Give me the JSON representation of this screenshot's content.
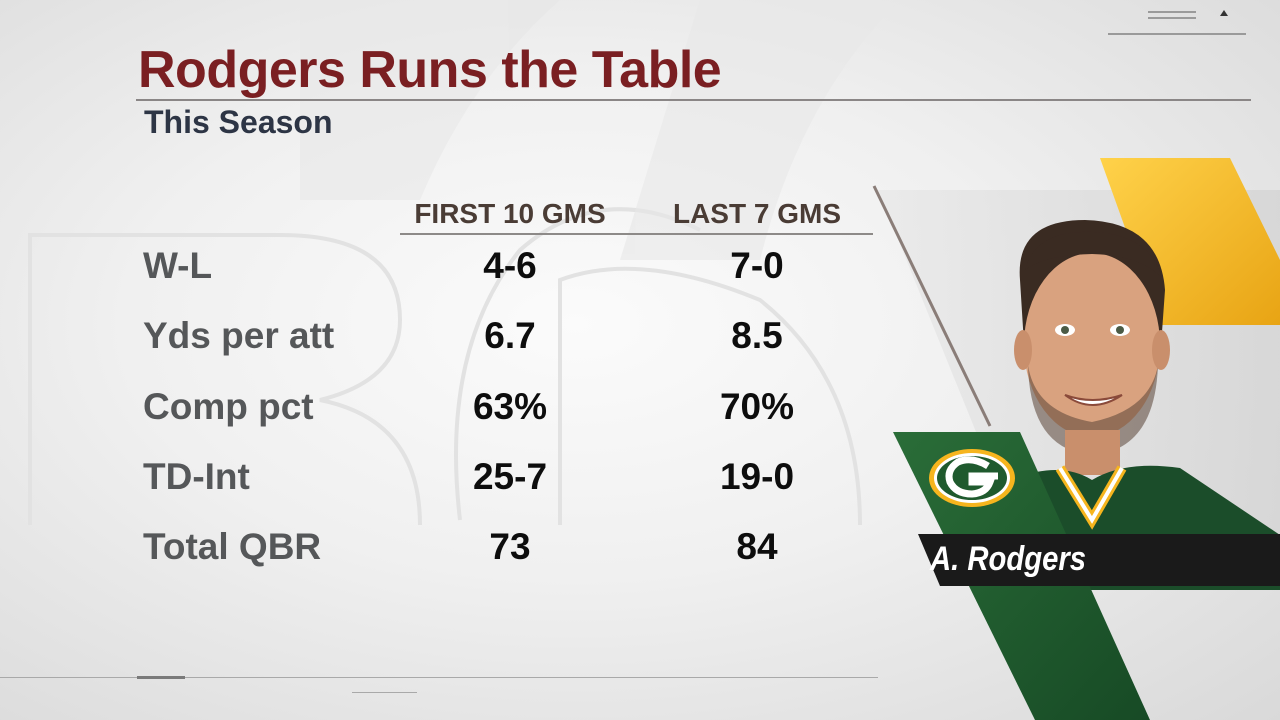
{
  "header": {
    "title": "Rodgers Runs the Table",
    "subtitle": "This Season"
  },
  "table": {
    "columns": [
      "FIRST 10 GMS",
      "LAST 7 GMS"
    ],
    "rows": [
      {
        "label": "W-L",
        "first": "4-6",
        "last": "7-0"
      },
      {
        "label": "Yds per att",
        "first": "6.7",
        "last": "8.5"
      },
      {
        "label": "Comp pct",
        "first": "63%",
        "last": "70%"
      },
      {
        "label": "TD-Int",
        "first": "25-7",
        "last": "19-0"
      },
      {
        "label": "Total QBR",
        "first": "73",
        "last": "84"
      }
    ]
  },
  "player": {
    "name": "A. Rodgers",
    "team_logo": "green-bay-packers-g-logo"
  },
  "colors": {
    "title": "#7a1f22",
    "subtitle": "#2d3545",
    "team_green": "#1f5a2e",
    "team_gold": "#f6b51e",
    "name_bar": "#1a1a1a"
  }
}
